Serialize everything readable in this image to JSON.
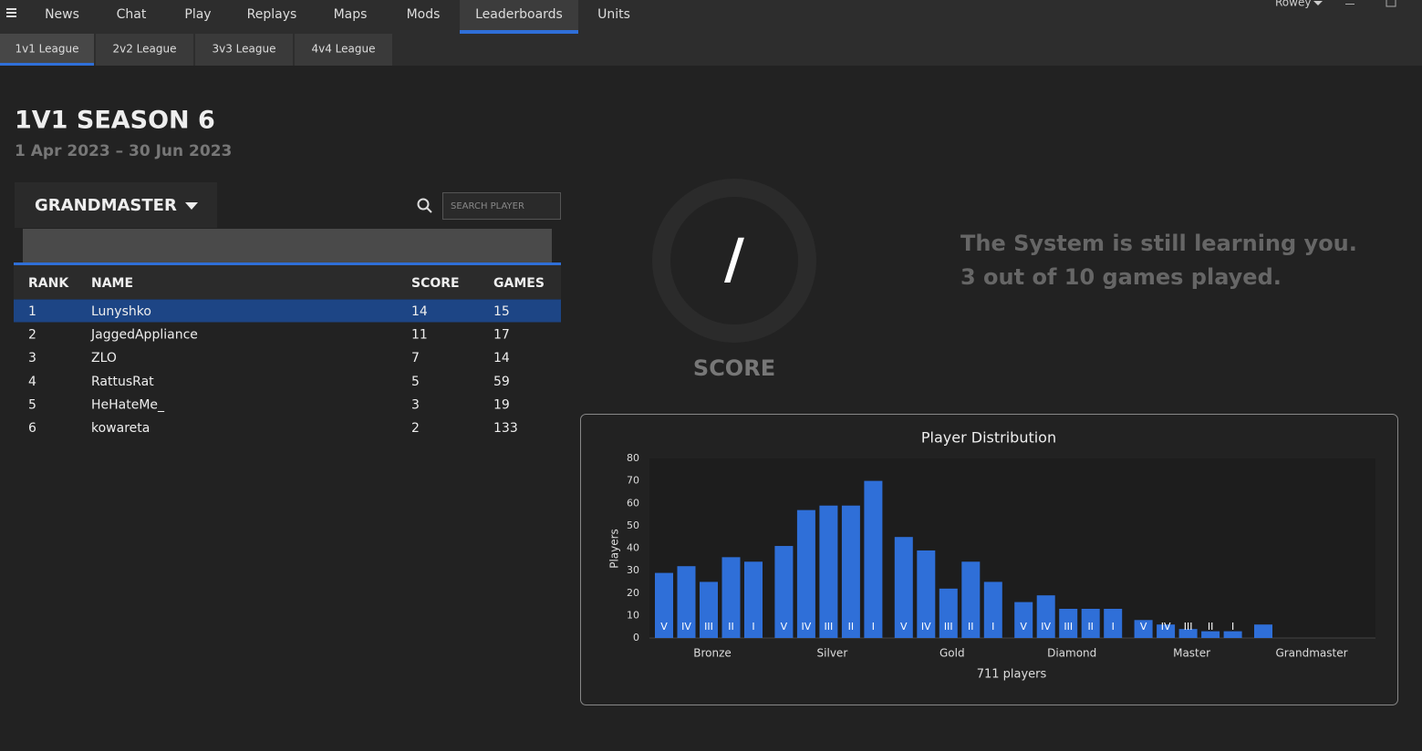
{
  "nav": {
    "items": [
      "News",
      "Chat",
      "Play",
      "Replays",
      "Maps",
      "Mods",
      "Leaderboards",
      "Units"
    ],
    "active": 6,
    "user": "Rowey"
  },
  "subnav": {
    "items": [
      "1v1 League",
      "2v2 League",
      "3v3 League",
      "4v4 League"
    ],
    "active": 0
  },
  "season": {
    "title": "1V1 SEASON 6",
    "dates": "1 Apr 2023 – 30 Jun 2023"
  },
  "league_select": "GRANDMASTER",
  "search_placeholder": "SEARCH PLAYER",
  "table": {
    "headers": [
      "RANK",
      "NAME",
      "SCORE",
      "GAMES"
    ],
    "selected": 0,
    "rows": [
      [
        1,
        "Lunyshko",
        14,
        15
      ],
      [
        2,
        "JaggedAppliance",
        11,
        17
      ],
      [
        3,
        "ZLO",
        7,
        14
      ],
      [
        4,
        "RattusRat",
        5,
        59
      ],
      [
        5,
        "HeHateMe_",
        3,
        19
      ],
      [
        6,
        "kowareta",
        2,
        133
      ]
    ]
  },
  "score": {
    "value": "/",
    "label": "SCORE"
  },
  "message": [
    "The System is still learning you.",
    "3 out of 10 games played."
  ],
  "chart_data": {
    "type": "bar",
    "title": "Player Distribution",
    "y_label": "Players",
    "x_label": "711 players",
    "color": "#2f6fd8",
    "ylim": [
      0,
      80
    ],
    "yticks": [
      0,
      10,
      20,
      30,
      40,
      50,
      60,
      70,
      80
    ],
    "groups": [
      {
        "name": "Bronze",
        "categories": [
          "V",
          "IV",
          "III",
          "II",
          "I"
        ],
        "values": [
          29,
          32,
          25,
          36,
          34
        ]
      },
      {
        "name": "Silver",
        "categories": [
          "V",
          "IV",
          "III",
          "II",
          "I"
        ],
        "values": [
          41,
          57,
          59,
          59,
          70
        ]
      },
      {
        "name": "Gold",
        "categories": [
          "V",
          "IV",
          "III",
          "II",
          "I"
        ],
        "values": [
          45,
          39,
          22,
          34,
          25
        ]
      },
      {
        "name": "Diamond",
        "categories": [
          "V",
          "IV",
          "III",
          "II",
          "I"
        ],
        "values": [
          16,
          19,
          13,
          13,
          13
        ]
      },
      {
        "name": "Master",
        "categories": [
          "V",
          "IV",
          "III",
          "II",
          "I"
        ],
        "values": [
          8,
          6,
          4,
          3,
          3
        ]
      },
      {
        "name": "Grandmaster",
        "categories": [
          null
        ],
        "values": [
          6
        ]
      }
    ]
  }
}
